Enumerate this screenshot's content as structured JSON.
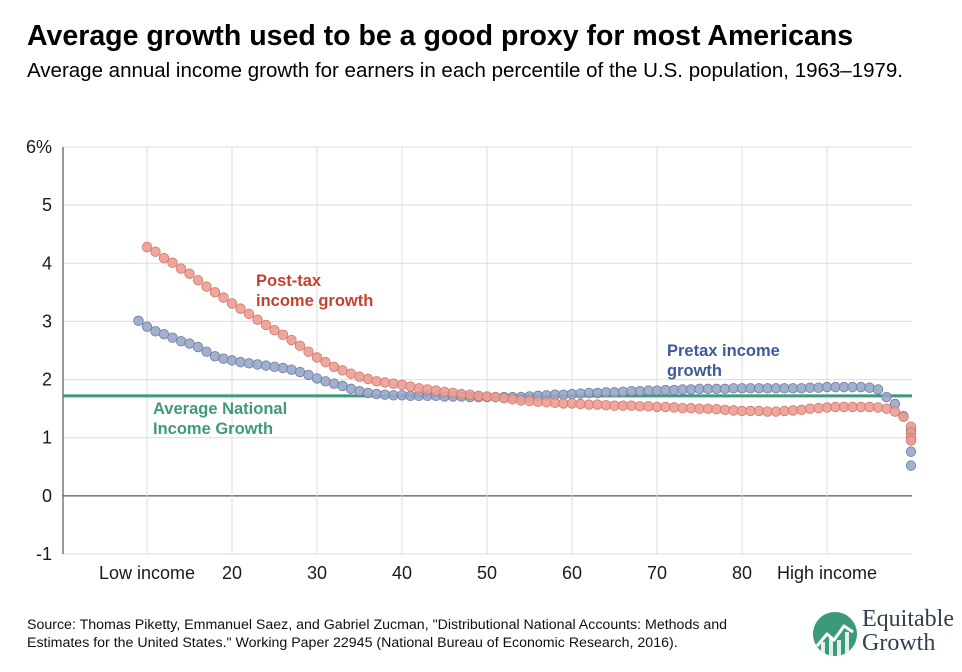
{
  "title": "Average growth used to be a good proxy for most Americans",
  "subtitle": "Average annual income growth for earners in each percentile of the U.S. population, 1963–1979.",
  "source": "Source: Thomas Piketty, Emmanuel Saez, and Gabriel Zucman, \"Distributional National Accounts: Methods and Estimates for the United States.\" Working Paper 22945 (National Bureau of Economic Research, 2016).",
  "logo": {
    "line1": "Equitable",
    "line2": "Growth"
  },
  "colors": {
    "pretax": "#98a7c9",
    "posttax": "#ec9c92",
    "average": "#3f9a78",
    "pretax_label": "#3d5a99",
    "posttax_label": "#c8412f"
  },
  "chart_data": {
    "type": "scatter",
    "xlim": [
      0,
      100
    ],
    "ylim": [
      -1,
      6
    ],
    "y_ticks": [
      "-1",
      "0",
      "1",
      "2",
      "3",
      "4",
      "5",
      "6%"
    ],
    "x_ticks": [
      {
        "x": 10,
        "label": "Low income"
      },
      {
        "x": 20,
        "label": "20"
      },
      {
        "x": 30,
        "label": "30"
      },
      {
        "x": 40,
        "label": "40"
      },
      {
        "x": 50,
        "label": "50"
      },
      {
        "x": 60,
        "label": "60"
      },
      {
        "x": 70,
        "label": "70"
      },
      {
        "x": 80,
        "label": "80"
      },
      {
        "x": 90,
        "label": "High income"
      }
    ],
    "grid": true,
    "average_line": {
      "label_line1": "Average National",
      "label_line2": "Income Growth",
      "value": 1.72
    },
    "series": [
      {
        "name_line1": "Pretax income",
        "name_line2": "growth",
        "x": [
          9,
          10,
          11,
          12,
          13,
          14,
          15,
          16,
          17,
          18,
          19,
          20,
          21,
          22,
          23,
          24,
          25,
          26,
          27,
          28,
          29,
          30,
          31,
          32,
          33,
          34,
          35,
          36,
          37,
          38,
          39,
          40,
          41,
          42,
          43,
          44,
          45,
          46,
          47,
          48,
          49,
          50,
          51,
          52,
          53,
          54,
          55,
          56,
          57,
          58,
          59,
          60,
          61,
          62,
          63,
          64,
          65,
          66,
          67,
          68,
          69,
          70,
          71,
          72,
          73,
          74,
          75,
          76,
          77,
          78,
          79,
          80,
          81,
          82,
          83,
          84,
          85,
          86,
          87,
          88,
          89,
          90,
          91,
          92,
          93,
          94,
          95,
          96,
          97,
          98,
          99,
          100,
          100,
          100,
          100
        ],
        "values": [
          3.01,
          2.91,
          2.83,
          2.78,
          2.72,
          2.66,
          2.62,
          2.56,
          2.48,
          2.4,
          2.36,
          2.33,
          2.3,
          2.28,
          2.26,
          2.24,
          2.22,
          2.2,
          2.17,
          2.13,
          2.08,
          2.02,
          1.97,
          1.93,
          1.89,
          1.84,
          1.8,
          1.77,
          1.75,
          1.74,
          1.73,
          1.73,
          1.72,
          1.72,
          1.72,
          1.72,
          1.71,
          1.71,
          1.71,
          1.7,
          1.7,
          1.7,
          1.7,
          1.7,
          1.7,
          1.7,
          1.71,
          1.72,
          1.73,
          1.74,
          1.74,
          1.75,
          1.76,
          1.77,
          1.77,
          1.78,
          1.78,
          1.79,
          1.8,
          1.8,
          1.81,
          1.81,
          1.82,
          1.82,
          1.83,
          1.83,
          1.84,
          1.84,
          1.84,
          1.84,
          1.85,
          1.85,
          1.85,
          1.85,
          1.85,
          1.85,
          1.85,
          1.85,
          1.85,
          1.86,
          1.86,
          1.87,
          1.87,
          1.87,
          1.87,
          1.87,
          1.86,
          1.83,
          1.7,
          1.58,
          1.37,
          1.12,
          0.97,
          0.76,
          0.52
        ]
      },
      {
        "name_line1": "Post-tax",
        "name_line2": "income growth",
        "x": [
          10,
          11,
          12,
          13,
          14,
          15,
          16,
          17,
          18,
          19,
          20,
          21,
          22,
          23,
          24,
          25,
          26,
          27,
          28,
          29,
          30,
          31,
          32,
          33,
          34,
          35,
          36,
          37,
          38,
          39,
          40,
          41,
          42,
          43,
          44,
          45,
          46,
          47,
          48,
          49,
          50,
          51,
          52,
          53,
          54,
          55,
          56,
          57,
          58,
          59,
          60,
          61,
          62,
          63,
          64,
          65,
          66,
          67,
          68,
          69,
          70,
          71,
          72,
          73,
          74,
          75,
          76,
          77,
          78,
          79,
          80,
          81,
          82,
          83,
          84,
          85,
          86,
          87,
          88,
          89,
          90,
          91,
          92,
          93,
          94,
          95,
          96,
          97,
          98,
          99,
          100,
          100,
          100,
          100
        ],
        "values": [
          4.28,
          4.2,
          4.09,
          4.01,
          3.91,
          3.82,
          3.71,
          3.6,
          3.5,
          3.41,
          3.31,
          3.22,
          3.13,
          3.03,
          2.94,
          2.85,
          2.77,
          2.68,
          2.58,
          2.48,
          2.38,
          2.3,
          2.22,
          2.16,
          2.1,
          2.05,
          2.01,
          1.97,
          1.95,
          1.93,
          1.91,
          1.88,
          1.85,
          1.83,
          1.81,
          1.79,
          1.77,
          1.75,
          1.74,
          1.72,
          1.71,
          1.7,
          1.68,
          1.66,
          1.64,
          1.63,
          1.62,
          1.61,
          1.6,
          1.59,
          1.59,
          1.58,
          1.57,
          1.57,
          1.56,
          1.55,
          1.55,
          1.55,
          1.54,
          1.54,
          1.53,
          1.53,
          1.52,
          1.51,
          1.51,
          1.5,
          1.5,
          1.49,
          1.48,
          1.47,
          1.46,
          1.46,
          1.46,
          1.45,
          1.45,
          1.46,
          1.47,
          1.48,
          1.5,
          1.51,
          1.52,
          1.53,
          1.53,
          1.53,
          1.53,
          1.53,
          1.52,
          1.5,
          1.45,
          1.36,
          1.19,
          1.08,
          1.0,
          0.95
        ]
      }
    ]
  }
}
